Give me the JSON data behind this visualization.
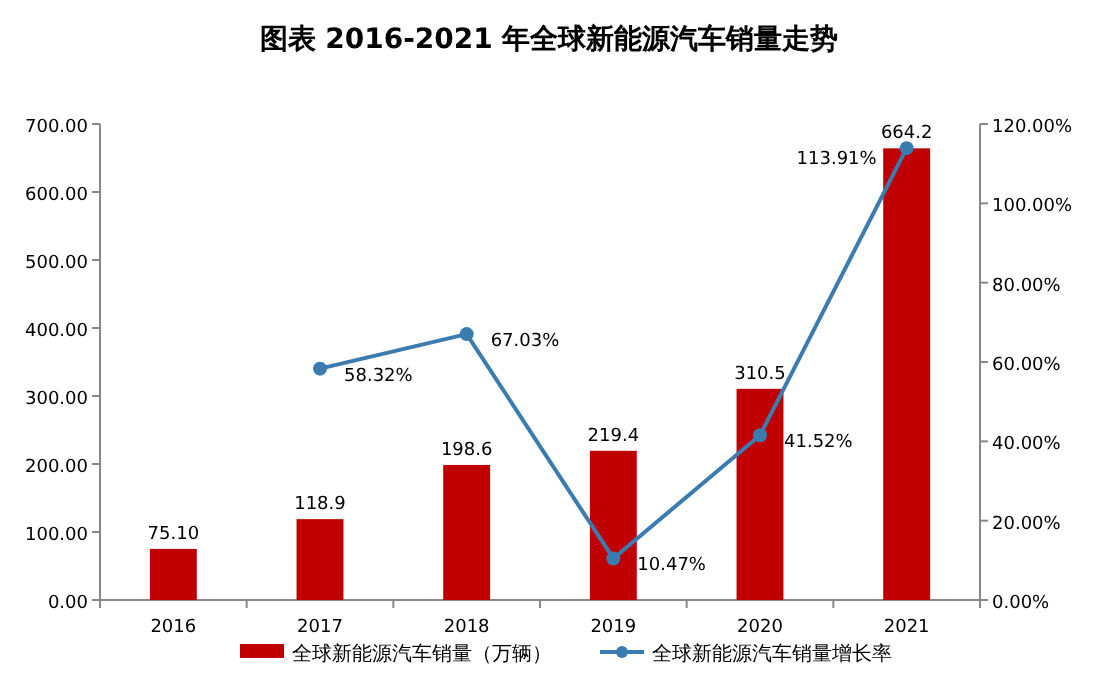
{
  "chart_data": {
    "type": "bar",
    "title": "图表  2016-2021 年全球新能源汽车销量走势",
    "categories": [
      "2016",
      "2017",
      "2018",
      "2019",
      "2020",
      "2021"
    ],
    "series": [
      {
        "name": "全球新能源汽车销量（万辆）",
        "color": "#c00000",
        "values": [
          75.1,
          118.9,
          198.6,
          219.4,
          310.5,
          664.2
        ],
        "value_labels": [
          "75.10",
          "118.9",
          "198.6",
          "219.4",
          "310.5",
          "664.2"
        ]
      },
      {
        "name": "全球新能源汽车销量增长率",
        "type": "line",
        "axis": "y2",
        "color": "#3a7bb0",
        "marker": "circle",
        "values": [
          null,
          58.32,
          67.03,
          10.47,
          41.52,
          113.91
        ],
        "value_labels": [
          null,
          "58.32%",
          "67.03%",
          "10.47%",
          "41.52%",
          "113.91%"
        ]
      }
    ],
    "ylim": [
      0,
      700
    ],
    "yticks": [
      {
        "value": 0,
        "label": "0.00"
      },
      {
        "value": 100,
        "label": "100.00"
      },
      {
        "value": 200,
        "label": "200.00"
      },
      {
        "value": 300,
        "label": "300.00"
      },
      {
        "value": 400,
        "label": "400.00"
      },
      {
        "value": 500,
        "label": "500.00"
      },
      {
        "value": 600,
        "label": "600.00"
      },
      {
        "value": 700,
        "label": "700.00"
      }
    ],
    "y2lim": [
      0,
      120
    ],
    "y2ticks": [
      {
        "value": 0,
        "label": "0.00%"
      },
      {
        "value": 20,
        "label": "20.00%"
      },
      {
        "value": 40,
        "label": "40.00%"
      },
      {
        "value": 60,
        "label": "60.00%"
      },
      {
        "value": 80,
        "label": "80.00%"
      },
      {
        "value": 100,
        "label": "100.00%"
      },
      {
        "value": 120,
        "label": "120.00%"
      }
    ],
    "legend": "bottom"
  }
}
